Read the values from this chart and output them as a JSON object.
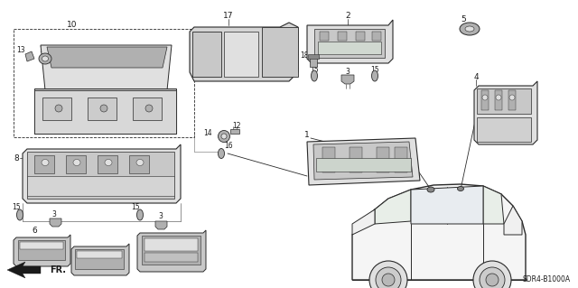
{
  "background_color": "#ffffff",
  "diagram_code": "SDR4-B1000A",
  "fr_label": "FR.",
  "line_color": "#2a2a2a",
  "text_color": "#1a1a1a",
  "gray_fill": "#c8c8c8",
  "gray_mid": "#b0b0b0",
  "gray_dark": "#888888",
  "gray_light": "#e0e0e0",
  "font_size_small": 5.5,
  "font_size_med": 6.5,
  "font_size_large": 8
}
